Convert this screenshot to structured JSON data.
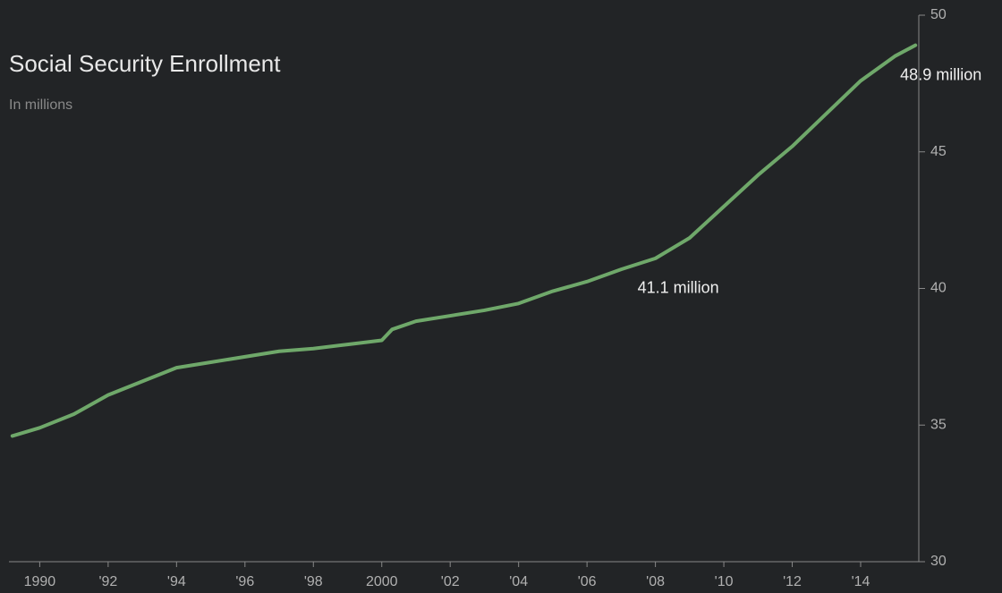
{
  "chart_data": {
    "type": "line",
    "title": "Social Security Enrollment",
    "subtitle": "In millions",
    "x": [
      1989.2,
      1990,
      1991,
      1992,
      1993,
      1994,
      1995,
      1996,
      1997,
      1998,
      1999,
      2000,
      2000.3,
      2001,
      2002,
      2003,
      2004,
      2005,
      2006,
      2007,
      2008,
      2009,
      2010,
      2011,
      2012,
      2013,
      2014,
      2015,
      2015.6
    ],
    "series": [
      {
        "name": "Enrollment",
        "color": "#6fa86a",
        "values": [
          34.6,
          34.9,
          35.4,
          36.1,
          36.6,
          37.1,
          37.3,
          37.5,
          37.7,
          37.8,
          37.95,
          38.1,
          38.5,
          38.8,
          39.0,
          39.2,
          39.45,
          39.9,
          40.25,
          40.7,
          41.1,
          41.85,
          43.0,
          44.15,
          45.2,
          46.4,
          47.6,
          48.5,
          48.9
        ]
      }
    ],
    "xlim": [
      1989.1,
      2015.7
    ],
    "ylim": [
      30,
      50
    ],
    "xticks": [
      1990,
      {
        "value": 1992,
        "label": "'92"
      },
      {
        "value": 1994,
        "label": "'94"
      },
      {
        "value": 1996,
        "label": "'96"
      },
      {
        "value": 1998,
        "label": "'98"
      },
      2000,
      {
        "value": 2002,
        "label": "'02"
      },
      {
        "value": 2004,
        "label": "'04"
      },
      {
        "value": 2006,
        "label": "'06"
      },
      {
        "value": 2008,
        "label": "'08"
      },
      {
        "value": 2010,
        "label": "'10"
      },
      {
        "value": 2012,
        "label": "'12"
      },
      {
        "value": 2014,
        "label": "'14"
      }
    ],
    "yticks": [
      30,
      35,
      40,
      45,
      50
    ],
    "annotations": [
      {
        "text": "41.1 million",
        "x": 2008,
        "y": 41.1
      },
      {
        "text": "48.9 million",
        "x": 2015.6,
        "y": 48.9
      }
    ]
  }
}
